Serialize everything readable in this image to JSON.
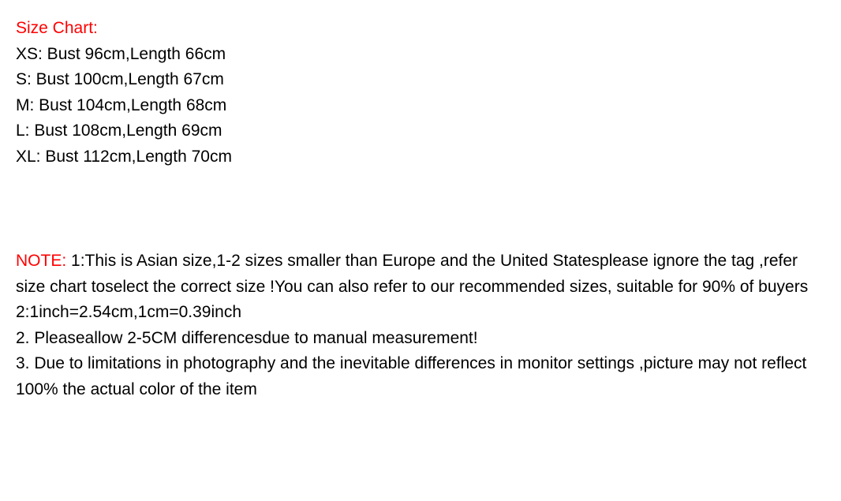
{
  "sizeChart": {
    "heading": "Size Chart:",
    "sizes": [
      "XS: Bust 96cm,Length 66cm",
      "S: Bust 100cm,Length 67cm",
      "M: Bust 104cm,Length 68cm",
      "L: Bust 108cm,Length 69cm",
      "XL: Bust 112cm,Length 70cm"
    ]
  },
  "notes": {
    "label": "NOTE: ",
    "body1": "1:This is Asian size,1-2 sizes smaller than Europe and the United Statesplease ignore the tag ,refer size chart toselect the correct size !You can also refer to our recommended sizes, suitable for 90% of buyers",
    "line2": "2:1inch=2.54cm,1cm=0.39inch",
    "line3": "2.  Pleaseallow 2-5CM differencesdue to manual measurement!",
    "line4": "3.  Due to limitations in photography and the inevitable differences in monitor settings ,picture may not reflect 100% the actual color of the item"
  },
  "colors": {
    "heading": "#ff0000",
    "text": "#000000",
    "background": "#ffffff"
  },
  "typography": {
    "fontSize": 21,
    "lineHeight": 1.55,
    "fontFamily": "Arial"
  }
}
